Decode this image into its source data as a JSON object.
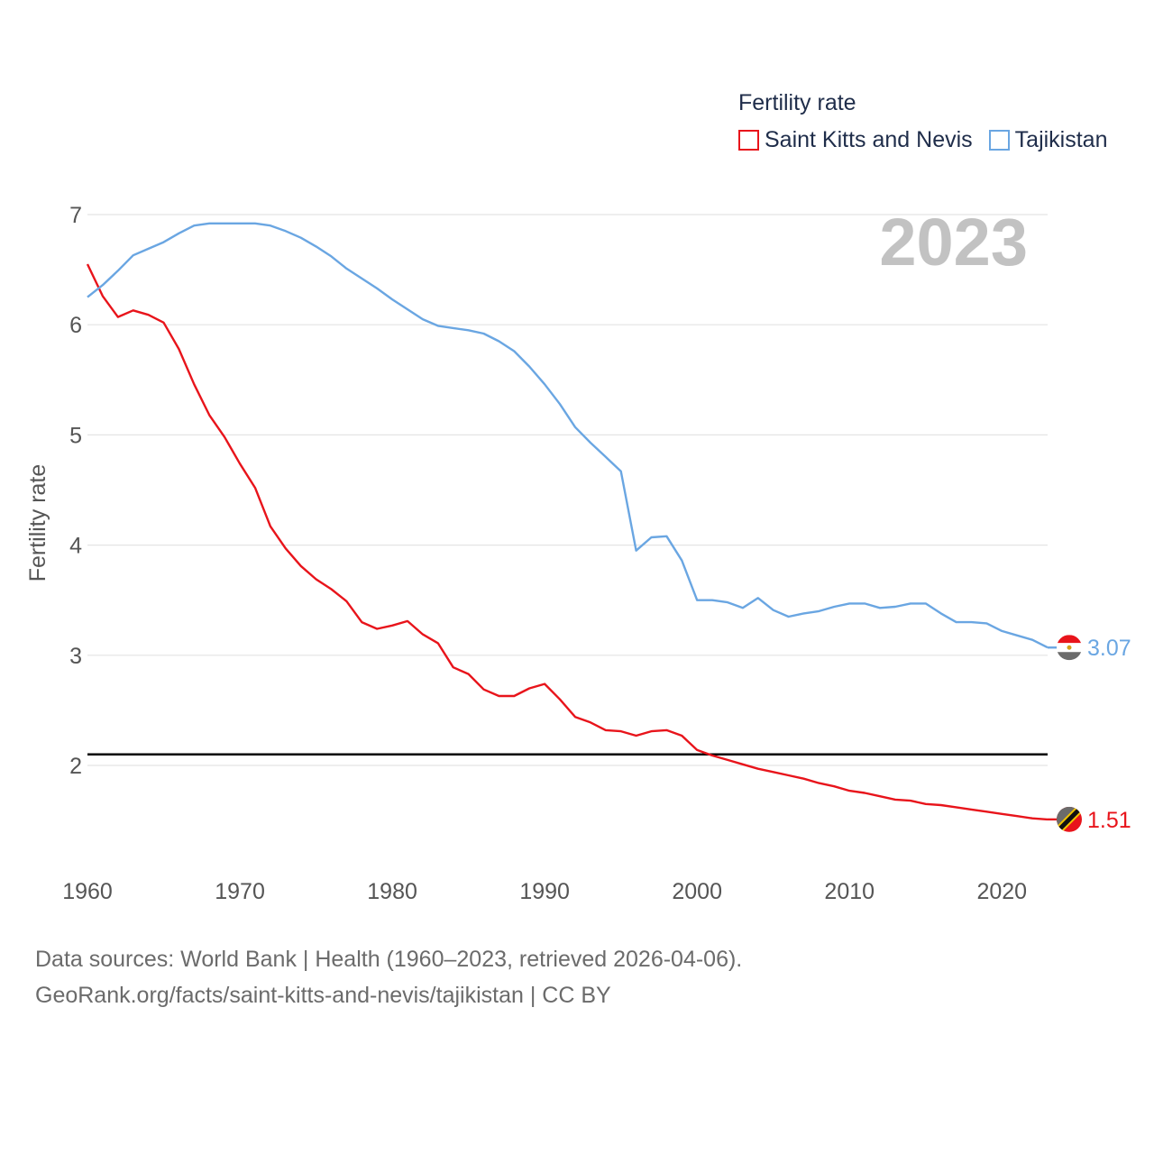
{
  "legend": {
    "title": "Fertility rate",
    "items": [
      {
        "label": "Saint Kitts and Nevis",
        "color": "#e8141b"
      },
      {
        "label": "Tajikistan",
        "color": "#6aa6e2"
      }
    ]
  },
  "year_stamp": "2023",
  "source": {
    "line1": "Data sources: World Bank | Health (1960–2023, retrieved 2026-04-06).",
    "line2": "GeoRank.org/facts/saint-kitts-and-nevis/tajikistan | CC BY"
  },
  "chart_data": {
    "type": "line",
    "title": "Fertility rate",
    "xlabel": "",
    "ylabel": "Fertility rate",
    "xlim": [
      1960,
      2023
    ],
    "ylim": [
      1.2,
      7.1
    ],
    "xticks": [
      1960,
      1970,
      1980,
      1990,
      2000,
      2010,
      2020
    ],
    "yticks": [
      2,
      3,
      4,
      5,
      6,
      7
    ],
    "grid": true,
    "legend_position": "top-right",
    "reference_line": {
      "y": 2.1,
      "color": "#000000"
    },
    "x": [
      1960,
      1961,
      1962,
      1963,
      1964,
      1965,
      1966,
      1967,
      1968,
      1969,
      1970,
      1971,
      1972,
      1973,
      1974,
      1975,
      1976,
      1977,
      1978,
      1979,
      1980,
      1981,
      1982,
      1983,
      1984,
      1985,
      1986,
      1987,
      1988,
      1989,
      1990,
      1991,
      1992,
      1993,
      1994,
      1995,
      1996,
      1997,
      1998,
      1999,
      2000,
      2001,
      2002,
      2003,
      2004,
      2005,
      2006,
      2007,
      2008,
      2009,
      2010,
      2011,
      2012,
      2013,
      2014,
      2015,
      2016,
      2017,
      2018,
      2019,
      2020,
      2021,
      2022,
      2023
    ],
    "series": [
      {
        "name": "Saint Kitts and Nevis",
        "color": "#e8141b",
        "end_label": "1.51",
        "values": [
          6.55,
          6.26,
          6.07,
          6.13,
          6.09,
          6.02,
          5.78,
          5.46,
          5.18,
          4.98,
          4.74,
          4.52,
          4.17,
          3.97,
          3.81,
          3.69,
          3.6,
          3.49,
          3.3,
          3.24,
          3.27,
          3.31,
          3.19,
          3.11,
          2.89,
          2.83,
          2.69,
          2.63,
          2.63,
          2.7,
          2.74,
          2.6,
          2.44,
          2.39,
          2.32,
          2.31,
          2.27,
          2.31,
          2.32,
          2.27,
          2.14,
          2.09,
          2.05,
          2.01,
          1.97,
          1.94,
          1.91,
          1.88,
          1.84,
          1.81,
          1.77,
          1.75,
          1.72,
          1.69,
          1.68,
          1.65,
          1.64,
          1.62,
          1.6,
          1.58,
          1.56,
          1.54,
          1.52,
          1.51
        ]
      },
      {
        "name": "Tajikistan",
        "color": "#6aa6e2",
        "end_label": "3.07",
        "values": [
          6.25,
          6.36,
          6.49,
          6.63,
          6.69,
          6.75,
          6.83,
          6.9,
          6.92,
          6.92,
          6.92,
          6.92,
          6.9,
          6.85,
          6.79,
          6.71,
          6.62,
          6.51,
          6.42,
          6.33,
          6.23,
          6.14,
          6.05,
          5.99,
          5.97,
          5.95,
          5.92,
          5.85,
          5.76,
          5.62,
          5.46,
          5.28,
          5.07,
          4.93,
          4.8,
          4.67,
          3.95,
          4.07,
          4.08,
          3.86,
          3.5,
          3.5,
          3.48,
          3.43,
          3.52,
          3.41,
          3.35,
          3.38,
          3.4,
          3.44,
          3.47,
          3.47,
          3.43,
          3.44,
          3.47,
          3.47,
          3.38,
          3.3,
          3.3,
          3.29,
          3.22,
          3.18,
          3.14,
          3.07
        ]
      }
    ]
  }
}
